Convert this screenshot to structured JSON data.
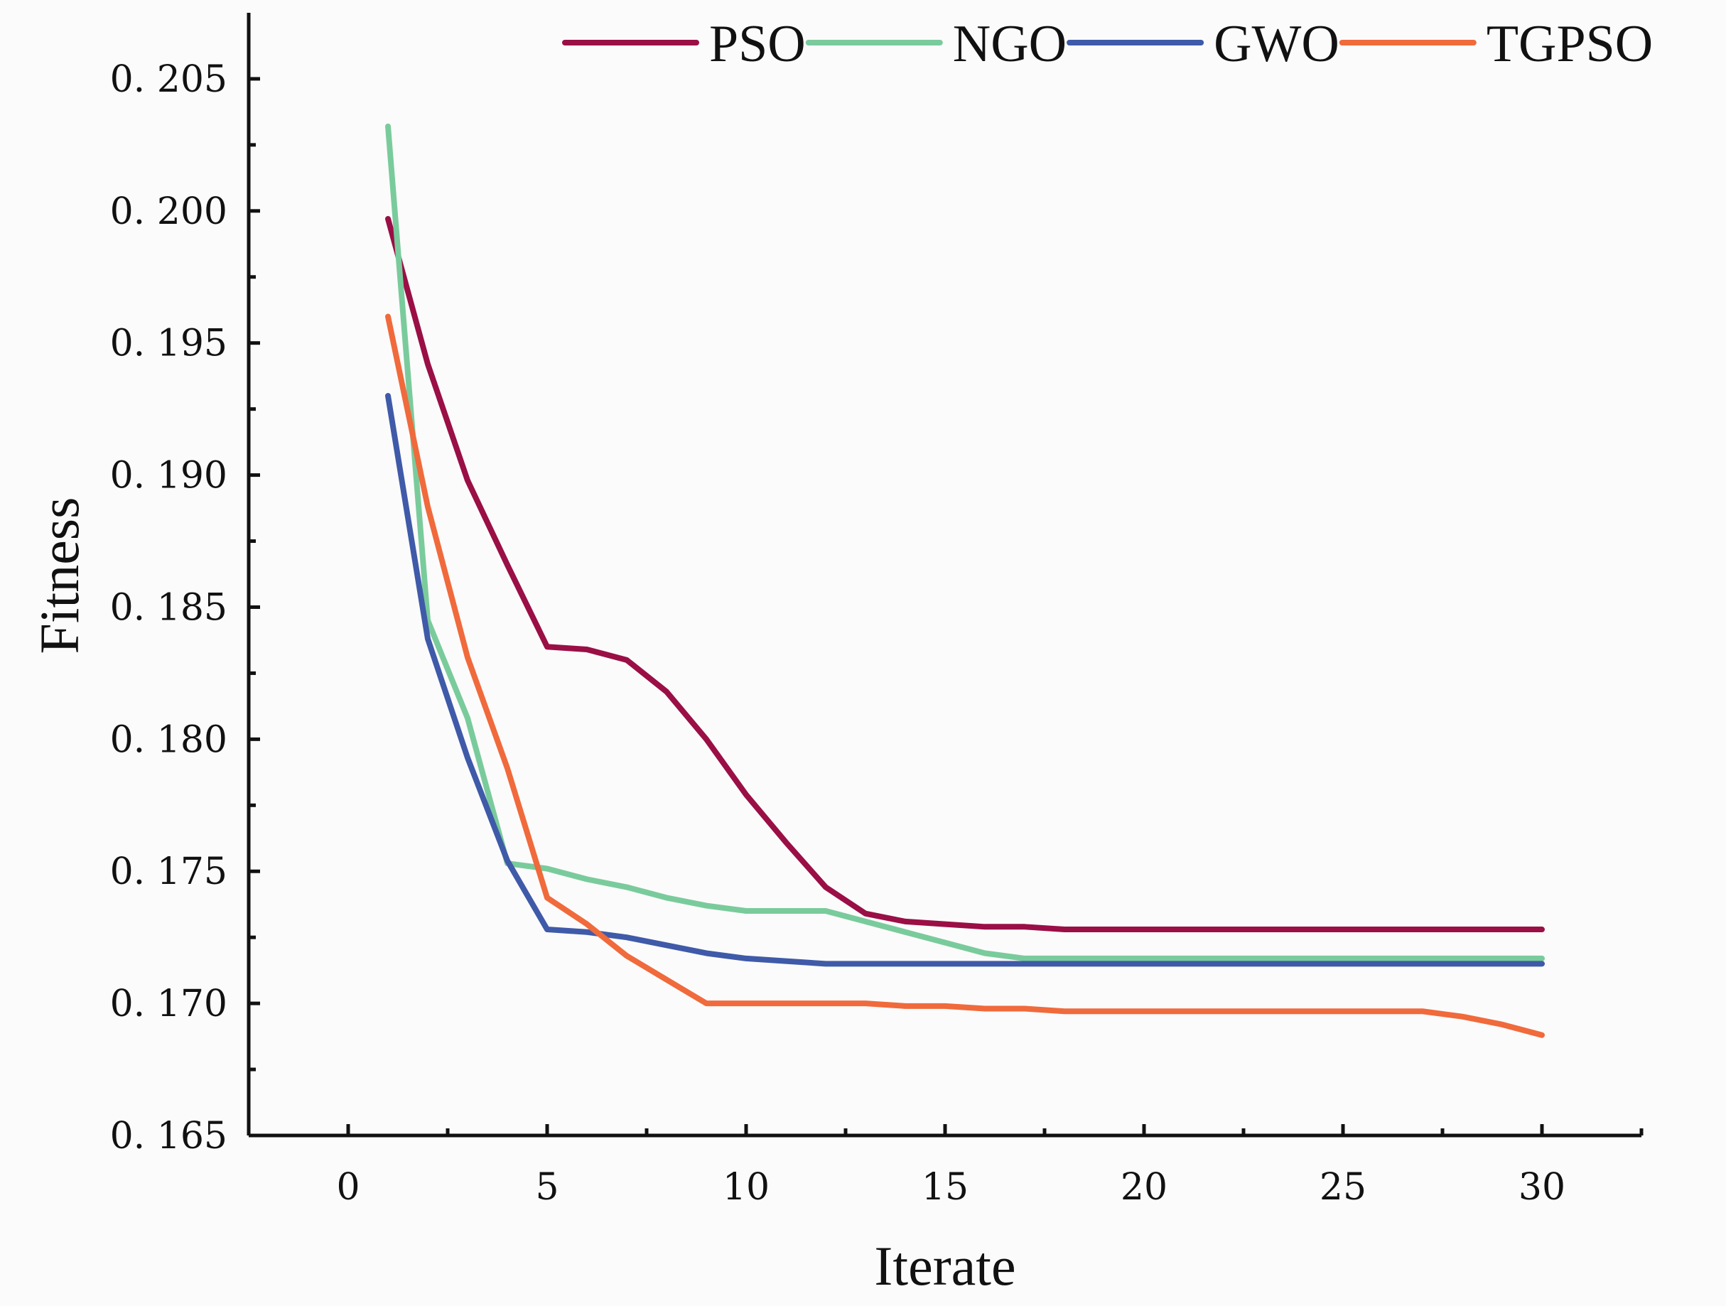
{
  "chart_data": {
    "type": "line",
    "title": "",
    "xlabel": "Iterate",
    "ylabel": "Fitness",
    "xlim": [
      -2.5,
      32.5
    ],
    "ylim": [
      0.165,
      0.2075
    ],
    "grid": false,
    "legend_position": "top",
    "x_ticks": [
      {
        "value": 0,
        "label": "0"
      },
      {
        "value": 5,
        "label": "5"
      },
      {
        "value": 10,
        "label": "10"
      },
      {
        "value": 15,
        "label": "15"
      },
      {
        "value": 20,
        "label": "20"
      },
      {
        "value": 25,
        "label": "25"
      },
      {
        "value": 30,
        "label": "30"
      }
    ],
    "y_ticks": [
      {
        "value": 0.165,
        "label": "0. 165"
      },
      {
        "value": 0.17,
        "label": "0. 170"
      },
      {
        "value": 0.175,
        "label": "0. 175"
      },
      {
        "value": 0.18,
        "label": "0. 180"
      },
      {
        "value": 0.185,
        "label": "0. 185"
      },
      {
        "value": 0.19,
        "label": "0. 190"
      },
      {
        "value": 0.195,
        "label": "0. 195"
      },
      {
        "value": 0.2,
        "label": "0. 200"
      },
      {
        "value": 0.205,
        "label": "0. 205"
      }
    ],
    "x": [
      1,
      2,
      3,
      4,
      5,
      6,
      7,
      8,
      9,
      10,
      11,
      12,
      13,
      14,
      15,
      16,
      17,
      18,
      19,
      20,
      21,
      22,
      23,
      24,
      25,
      26,
      27,
      28,
      29,
      30
    ],
    "series": [
      {
        "name": "PSO",
        "color": "#9a0f45",
        "values": [
          0.1997,
          0.1942,
          0.1898,
          0.1866,
          0.1835,
          0.1834,
          0.183,
          0.1818,
          0.18,
          0.1779,
          0.1761,
          0.1744,
          0.1734,
          0.1731,
          0.173,
          0.1729,
          0.1729,
          0.1728,
          0.1728,
          0.1728,
          0.1728,
          0.1728,
          0.1728,
          0.1728,
          0.1728,
          0.1728,
          0.1728,
          0.1728,
          0.1728,
          0.1728
        ]
      },
      {
        "name": "NGO",
        "color": "#7acb9c",
        "values": [
          0.2032,
          0.1845,
          0.1808,
          0.1753,
          0.1751,
          0.1747,
          0.1744,
          0.174,
          0.1737,
          0.1735,
          0.1735,
          0.1735,
          0.1731,
          0.1727,
          0.1723,
          0.1719,
          0.1717,
          0.1717,
          0.1717,
          0.1717,
          0.1717,
          0.1717,
          0.1717,
          0.1717,
          0.1717,
          0.1717,
          0.1717,
          0.1717,
          0.1717,
          0.1717
        ]
      },
      {
        "name": "GWO",
        "color": "#3f5aa8",
        "values": [
          0.193,
          0.1838,
          0.1793,
          0.1754,
          0.1728,
          0.1727,
          0.1725,
          0.1722,
          0.1719,
          0.1717,
          0.1716,
          0.1715,
          0.1715,
          0.1715,
          0.1715,
          0.1715,
          0.1715,
          0.1715,
          0.1715,
          0.1715,
          0.1715,
          0.1715,
          0.1715,
          0.1715,
          0.1715,
          0.1715,
          0.1715,
          0.1715,
          0.1715,
          0.1715
        ]
      },
      {
        "name": "TGPSO",
        "color": "#f06a3c",
        "values": [
          0.196,
          0.1888,
          0.1831,
          0.1789,
          0.174,
          0.173,
          0.1718,
          0.1709,
          0.17,
          0.17,
          0.17,
          0.17,
          0.17,
          0.1699,
          0.1699,
          0.1698,
          0.1698,
          0.1697,
          0.1697,
          0.1697,
          0.1697,
          0.1697,
          0.1697,
          0.1697,
          0.1697,
          0.1697,
          0.1697,
          0.1695,
          0.1692,
          0.1688
        ]
      }
    ]
  }
}
